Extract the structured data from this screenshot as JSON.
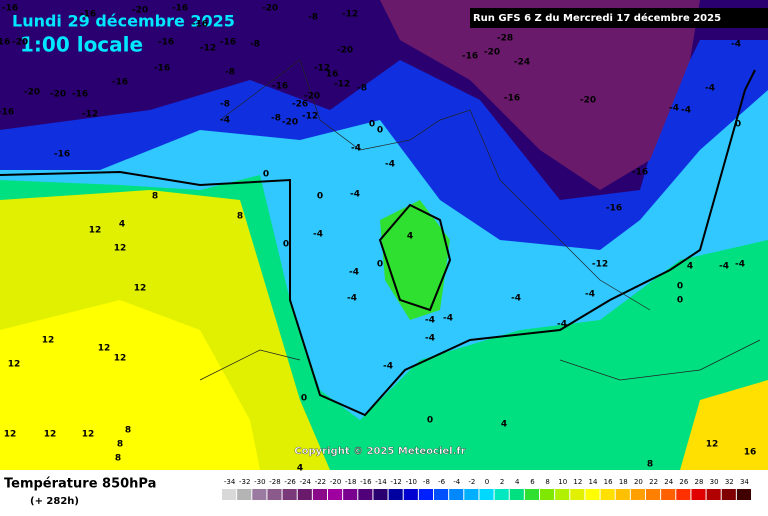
{
  "header": {
    "date": "Lundi 29 décembre 2025",
    "time": "1:00 locale",
    "run": "Run GFS 6 Z du Mercredi 17 décembre 2025"
  },
  "copyright": "Copyright © 2025 Meteociel.fr",
  "footer": {
    "title": "Température 850hPa",
    "lead": "(+ 282h)"
  },
  "scale": {
    "ticks": [
      -34,
      -32,
      -30,
      -28,
      -26,
      -24,
      -22,
      -20,
      -18,
      -16,
      -14,
      -12,
      -10,
      -8,
      -6,
      -4,
      -2,
      0,
      2,
      4,
      6,
      8,
      10,
      12,
      14,
      16,
      18,
      20,
      22,
      24,
      26,
      28,
      30,
      32,
      34
    ],
    "colors": [
      "#d8d8d8",
      "#b4b4b4",
      "#9a7aa0",
      "#8a5a8a",
      "#7a3a7a",
      "#6a1a6a",
      "#8a0a8a",
      "#a000a0",
      "#7a0090",
      "#500078",
      "#2a0070",
      "#0000a0",
      "#0000d0",
      "#0020ff",
      "#0050ff",
      "#0088ff",
      "#00b0ff",
      "#00d8ff",
      "#00e8c0",
      "#00e080",
      "#30e030",
      "#80e800",
      "#b0f000",
      "#e0f000",
      "#ffff00",
      "#ffe000",
      "#ffc000",
      "#ffa000",
      "#ff8000",
      "#ff6000",
      "#ff3000",
      "#e00000",
      "#b00000",
      "#800000",
      "#400000"
    ]
  },
  "map": {
    "labels": [
      "-16",
      "-16",
      "-16",
      "-20",
      "-20",
      "-8",
      "-12",
      "-16",
      "-16",
      "-8",
      "-12",
      "-16",
      "16",
      "-20",
      "-16",
      "-16",
      "-8",
      "-16",
      "-12",
      "16",
      "-12",
      "-8",
      "-20",
      "-20",
      "-26",
      "-12",
      "-8",
      "-20",
      "-20",
      "-20",
      "-16",
      "-16",
      "-12",
      "-16",
      "-4",
      "-8",
      "0",
      "0",
      "-4",
      "-4",
      "0",
      "0",
      "-4",
      "-4",
      "0",
      "8",
      "8",
      "4",
      "12",
      "12",
      "12",
      "12",
      "12",
      "12",
      "12",
      "12",
      "12",
      "12",
      "8",
      "8",
      "8",
      "4",
      "0",
      "-4",
      "-4",
      "-4",
      "-4",
      "-4",
      "-4",
      "0",
      "-16",
      "-20",
      "-24",
      "-28",
      "-16",
      "-20",
      "-16",
      "-16",
      "-12",
      "-4",
      "-4",
      "-4",
      "-4",
      "-4",
      "-4",
      "-4",
      "0",
      "4",
      "-4",
      "-4",
      "0",
      "0",
      "12",
      "16",
      "4",
      "0",
      "4",
      "8"
    ]
  }
}
